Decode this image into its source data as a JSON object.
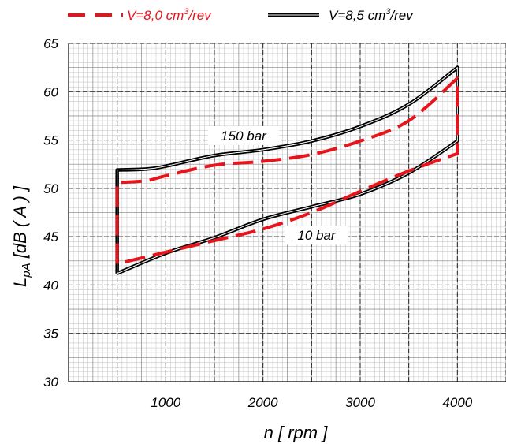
{
  "chart_data": {
    "type": "line",
    "xlabel": "n [ rpm ]",
    "ylabel": "L_pA [dB ( A ) ]",
    "ylabel_main": "L",
    "ylabel_sub": "pA",
    "ylabel_rest": " [dB ( A )  ]",
    "xlim": [
      0,
      4500
    ],
    "ylim": [
      30,
      65
    ],
    "xticks": [
      1000,
      2000,
      3000,
      4000
    ],
    "yticks": [
      30,
      35,
      40,
      45,
      50,
      55,
      60,
      65
    ],
    "grid": true,
    "legend_position": "top",
    "series": [
      {
        "name": "V=8,0 cm³/rev",
        "legend_text": "V=8,0 cm",
        "legend_sup": "3",
        "legend_tail": "/rev",
        "color": "#e8141b",
        "style": "dashed",
        "x": [
          500,
          500,
          800,
          1000,
          1500,
          2000,
          2500,
          3000,
          3500,
          4000,
          4000,
          3500,
          3000,
          2500,
          2000,
          1500,
          1000,
          500,
          500
        ],
        "y": [
          42.2,
          50.6,
          50.8,
          51.3,
          52.4,
          52.8,
          53.5,
          54.9,
          57.0,
          61.4,
          53.6,
          51.8,
          49.7,
          47.5,
          45.8,
          44.6,
          43.4,
          42.2,
          42.2
        ]
      },
      {
        "name": "V=8,5 cm³/rev",
        "legend_text": "V=8,5 cm",
        "legend_sup": "3",
        "legend_tail": "/rev",
        "color": "#000000",
        "style": "solid",
        "x": [
          500,
          500,
          800,
          1000,
          1500,
          2000,
          2500,
          3000,
          3500,
          4000,
          4000,
          3500,
          3000,
          2500,
          2000,
          1500,
          1000,
          500
        ],
        "y": [
          41.2,
          51.9,
          52.0,
          52.3,
          53.4,
          54.0,
          54.9,
          56.4,
          58.7,
          62.5,
          54.9,
          51.6,
          49.4,
          48.1,
          46.8,
          44.9,
          43.3,
          41.2
        ]
      }
    ],
    "annotations": [
      {
        "text": "150 bar",
        "x": 1800,
        "y": 55.3
      },
      {
        "text": "10 bar",
        "x": 2550,
        "y": 45.0
      }
    ]
  }
}
